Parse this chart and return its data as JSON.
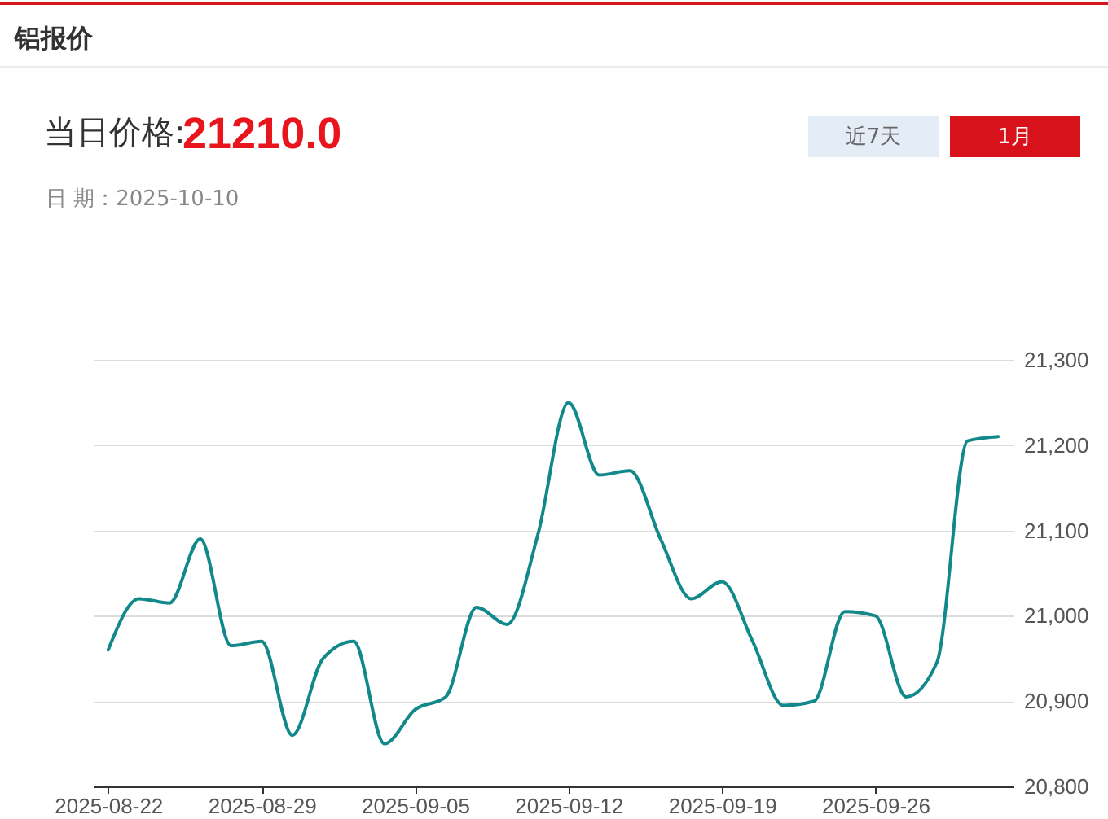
{
  "chart_data": {
    "type": "line",
    "title": "铝报价",
    "annotations": [
      "当日价格:",
      "21210.0",
      "日 期：2025-10-10",
      "近7天",
      "1月"
    ],
    "categories": [
      "2025-08-22",
      null,
      null,
      null,
      null,
      "2025-08-29",
      null,
      null,
      null,
      null,
      "2025-09-05",
      null,
      null,
      null,
      null,
      "2025-09-12",
      null,
      null,
      null,
      null,
      "2025-09-19",
      null,
      null,
      null,
      null,
      "2025-09-26",
      null,
      null,
      null,
      null
    ],
    "series": [
      {
        "color": "#11898b",
        "values": [
          20960,
          21020,
          21015,
          21090,
          20965,
          20970,
          20860,
          20950,
          20970,
          20850,
          20890,
          20905,
          21010,
          20990,
          21095,
          21250,
          21165,
          21170,
          21090,
          21020,
          21040,
          20970,
          20895,
          20900,
          21005,
          21000,
          20905,
          20945,
          21205,
          21210
        ]
      }
    ],
    "ylim": [
      20800,
      21300
    ],
    "yticks": [
      {
        "value": 20800,
        "label": "20,800"
      },
      {
        "value": 20900,
        "label": "20,900"
      },
      {
        "value": 21000,
        "label": "21,000"
      },
      {
        "value": 21100,
        "label": "21,100"
      },
      {
        "value": 21200,
        "label": "21,200"
      },
      {
        "value": 21300,
        "label": "21,300"
      }
    ],
    "grid": "y"
  }
}
